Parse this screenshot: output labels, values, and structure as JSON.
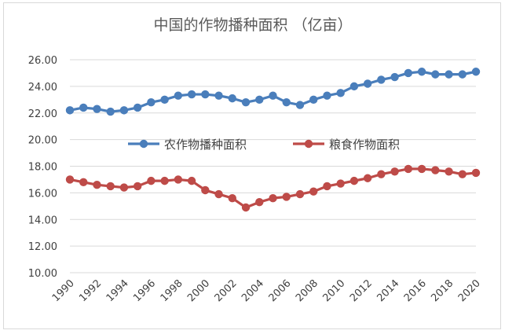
{
  "chart_data": {
    "type": "line",
    "title": "中国的作物播种面积 （亿亩）",
    "xlabel": "",
    "ylabel": "",
    "x": [
      1990,
      1991,
      1992,
      1993,
      1994,
      1995,
      1996,
      1997,
      1998,
      1999,
      2000,
      2001,
      2002,
      2003,
      2004,
      2005,
      2006,
      2007,
      2008,
      2009,
      2010,
      2011,
      2012,
      2013,
      2014,
      2015,
      2016,
      2017,
      2018,
      2019,
      2020
    ],
    "xticks": [
      "1990",
      "1992",
      "1994",
      "1996",
      "1998",
      "2000",
      "2002",
      "2004",
      "2006",
      "2008",
      "2010",
      "2012",
      "2014",
      "2016",
      "2018",
      "2020"
    ],
    "yticks": [
      "10.00",
      "12.00",
      "14.00",
      "16.00",
      "18.00",
      "20.00",
      "22.00",
      "24.00",
      "26.00"
    ],
    "ylim": [
      10,
      26
    ],
    "grid": "horizontal",
    "legend_position": "center",
    "series": [
      {
        "name": "农作物播种面积",
        "color": "#4a7ebb",
        "values": [
          22.2,
          22.4,
          22.3,
          22.1,
          22.2,
          22.4,
          22.8,
          23.0,
          23.3,
          23.4,
          23.4,
          23.3,
          23.1,
          22.8,
          23.0,
          23.3,
          22.8,
          22.6,
          23.0,
          23.3,
          23.5,
          24.0,
          24.2,
          24.5,
          24.7,
          25.0,
          25.1,
          24.9,
          24.9,
          24.9,
          25.1
        ]
      },
      {
        "name": "粮食作物面积",
        "color": "#be4b48",
        "values": [
          17.0,
          16.8,
          16.6,
          16.5,
          16.4,
          16.5,
          16.9,
          16.9,
          17.0,
          16.9,
          16.2,
          15.9,
          15.6,
          14.9,
          15.3,
          15.6,
          15.7,
          15.9,
          16.1,
          16.5,
          16.7,
          16.9,
          17.1,
          17.4,
          17.6,
          17.8,
          17.8,
          17.7,
          17.6,
          17.4,
          17.5
        ]
      }
    ]
  }
}
